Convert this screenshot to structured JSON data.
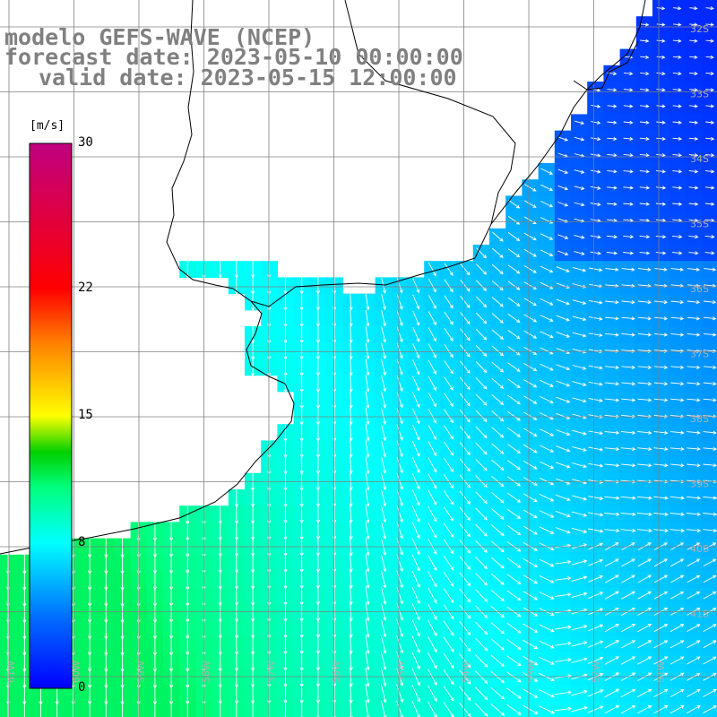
{
  "title": {
    "line1": "modelo GEFS-WAVE (NCEP)",
    "line2": "forecast date: 2023-05-10 00:00:00",
    "line3": "valid date: 2023-05-15 12:00:00"
  },
  "colorbar": {
    "unit": "[m/s]",
    "min": 0,
    "max": 30,
    "ticks": [
      {
        "value": 30,
        "label": "30"
      },
      {
        "value": 22,
        "label": "22"
      },
      {
        "value": 15,
        "label": "15"
      },
      {
        "value": 8,
        "label": "8"
      },
      {
        "value": 0,
        "label": "0"
      }
    ],
    "stops": [
      {
        "value": 0,
        "color": "#0000ff"
      },
      {
        "value": 4,
        "color": "#0070ff"
      },
      {
        "value": 8,
        "color": "#00ffff"
      },
      {
        "value": 11,
        "color": "#00ff80"
      },
      {
        "value": 13,
        "color": "#00d000"
      },
      {
        "value": 15,
        "color": "#ffff00"
      },
      {
        "value": 19,
        "color": "#ff8000"
      },
      {
        "value": 22,
        "color": "#ff0000"
      },
      {
        "value": 30,
        "color": "#c00080"
      }
    ]
  },
  "grid_labels": {
    "latitudes": [
      "32S",
      "33S",
      "34S",
      "35S",
      "36S",
      "37S",
      "38S",
      "39S",
      "40S",
      "41S"
    ],
    "longitudes": [
      "61W",
      "60W",
      "59W",
      "58W",
      "57W",
      "56W",
      "55W",
      "54W",
      "53W",
      "52W",
      "51W"
    ]
  },
  "map_extent": {
    "lon_min": -61.5,
    "lon_max": -50.5,
    "lat_min": -41.5,
    "lat_max": -30.5
  },
  "colors": {
    "grid": "#808080",
    "coast": "#000000",
    "land": "#ffffff",
    "arrow": "#ffffff"
  }
}
